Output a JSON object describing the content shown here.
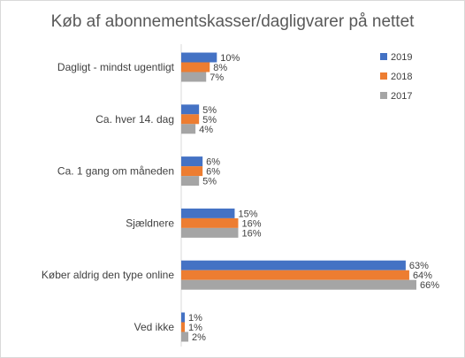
{
  "chart_data": {
    "type": "bar",
    "orientation": "horizontal",
    "title": "Køb af abonnementskasser/dagligvarer  på nettet",
    "categories": [
      "Dagligt - mindst ugentligt",
      "Ca. hver 14. dag",
      "Ca. 1 gang om måneden",
      "Sjældnere",
      "Køber aldrig den type online",
      "Ved ikke"
    ],
    "series": [
      {
        "name": "2019",
        "color": "#4472c4",
        "values": [
          10,
          5,
          6,
          15,
          63,
          1
        ],
        "labels": [
          "10%",
          "5%",
          "6%",
          "15%",
          "63%",
          "1%"
        ]
      },
      {
        "name": "2018",
        "color": "#ed7d31",
        "values": [
          8,
          5,
          6,
          16,
          64,
          1
        ],
        "labels": [
          "8%",
          "5%",
          "6%",
          "16%",
          "64%",
          "1%"
        ]
      },
      {
        "name": "2017",
        "color": "#a5a5a5",
        "values": [
          7,
          4,
          5,
          16,
          66,
          2
        ],
        "labels": [
          "7%",
          "4%",
          "5%",
          "16%",
          "66%",
          "2%"
        ]
      }
    ],
    "value_unit": "%",
    "legend_position": "right",
    "grid": false,
    "xlim": [
      0,
      70
    ]
  }
}
